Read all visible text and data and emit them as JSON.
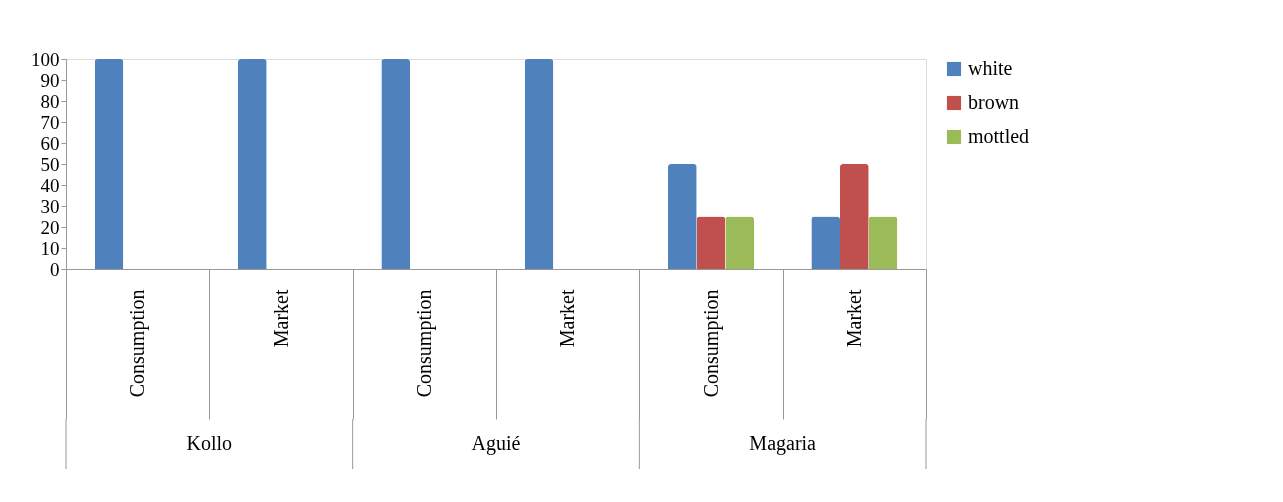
{
  "chart_data": {
    "type": "bar",
    "categories": [
      "Consumption",
      "Market",
      "Consumption",
      "Market",
      "Consumption",
      "Market"
    ],
    "series": [
      {
        "name": "white",
        "color": "#4f81bd",
        "values": [
          100,
          100,
          100,
          100,
          50,
          25
        ]
      },
      {
        "name": "brown",
        "color": "#c0504d",
        "values": [
          0,
          0,
          0,
          0,
          25,
          50
        ]
      },
      {
        "name": "mottled",
        "color": "#9bbb59",
        "values": [
          0,
          0,
          0,
          0,
          25,
          25
        ]
      }
    ],
    "annotations": [
      "Kollo",
      "Aguié",
      "Magaria"
    ],
    "ylim": [
      0,
      100
    ],
    "yticks": [
      0,
      10,
      20,
      30,
      40,
      50,
      60,
      70,
      80,
      90,
      100
    ],
    "grid": false,
    "legend": "right"
  }
}
